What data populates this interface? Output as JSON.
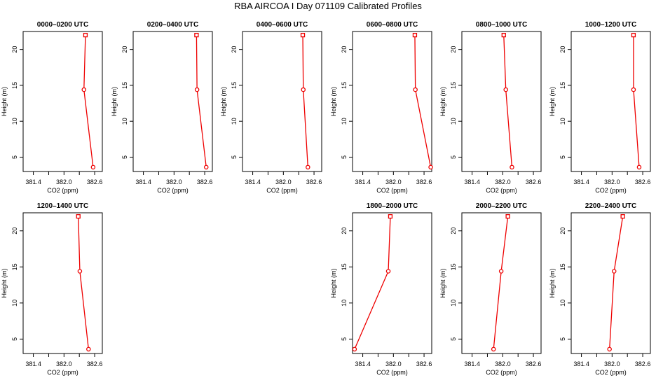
{
  "title": "RBA AIRCOA I  Day 071109  Calibrated Profiles",
  "colors": {
    "line": "#ee0000",
    "frame": "#000000"
  },
  "chart_data": [
    {
      "type": "line",
      "title": "0000–0200 UTC",
      "xlabel": "CO2 (ppm)",
      "ylabel": "Height (m)",
      "xlim": [
        381.2,
        382.75
      ],
      "ylim": [
        3,
        22.5
      ],
      "x_ticks": [
        "381.4",
        "382.0",
        "382.6"
      ],
      "x_tick_values": [
        381.4,
        381.7,
        382.0,
        382.3,
        382.6
      ],
      "y_ticks": [
        5,
        10,
        15,
        20
      ],
      "x": [
        382.42,
        382.39,
        382.57
      ],
      "y": [
        22,
        14.4,
        3.6
      ]
    },
    {
      "type": "line",
      "title": "0200–0400 UTC",
      "xlabel": "CO2 (ppm)",
      "ylabel": "Height (m)",
      "xlim": [
        381.2,
        382.75
      ],
      "ylim": [
        3,
        22.5
      ],
      "x_ticks": [
        "381.4",
        "382.0",
        "382.6"
      ],
      "x_tick_values": [
        381.4,
        381.7,
        382.0,
        382.3,
        382.6
      ],
      "y_ticks": [
        5,
        10,
        15,
        20
      ],
      "x": [
        382.44,
        382.45,
        382.63
      ],
      "y": [
        22,
        14.4,
        3.6
      ]
    },
    {
      "type": "line",
      "title": "0400–0600 UTC",
      "xlabel": "CO2 (ppm)",
      "ylabel": "Height (m)",
      "xlim": [
        381.2,
        382.75
      ],
      "ylim": [
        3,
        22.5
      ],
      "x_ticks": [
        "381.4",
        "382.0",
        "382.6"
      ],
      "x_tick_values": [
        381.4,
        381.7,
        382.0,
        382.3,
        382.6
      ],
      "y_ticks": [
        5,
        10,
        15,
        20
      ],
      "x": [
        382.38,
        382.39,
        382.48
      ],
      "y": [
        22,
        14.4,
        3.6
      ]
    },
    {
      "type": "line",
      "title": "0600–0800 UTC",
      "xlabel": "CO2 (ppm)",
      "ylabel": "Height (m)",
      "xlim": [
        381.2,
        382.75
      ],
      "ylim": [
        3,
        22.5
      ],
      "x_ticks": [
        "381.4",
        "382.0",
        "382.6"
      ],
      "x_tick_values": [
        381.4,
        381.7,
        382.0,
        382.3,
        382.6
      ],
      "y_ticks": [
        5,
        10,
        15,
        20
      ],
      "x": [
        382.42,
        382.43,
        382.73
      ],
      "y": [
        22,
        14.4,
        3.6
      ]
    },
    {
      "type": "line",
      "title": "0800–1000 UTC",
      "xlabel": "CO2 (ppm)",
      "ylabel": "Height (m)",
      "xlim": [
        381.2,
        382.75
      ],
      "ylim": [
        3,
        22.5
      ],
      "x_ticks": [
        "381.4",
        "382.0",
        "382.6"
      ],
      "x_tick_values": [
        381.4,
        381.7,
        382.0,
        382.3,
        382.6
      ],
      "y_ticks": [
        5,
        10,
        15,
        20
      ],
      "x": [
        382.02,
        382.06,
        382.18
      ],
      "y": [
        22,
        14.4,
        3.6
      ]
    },
    {
      "type": "line",
      "title": "1000–1200 UTC",
      "xlabel": "CO2 (ppm)",
      "ylabel": "Height (m)",
      "xlim": [
        381.2,
        382.75
      ],
      "ylim": [
        3,
        22.5
      ],
      "x_ticks": [
        "381.4",
        "382.0",
        "382.6"
      ],
      "x_tick_values": [
        381.4,
        381.7,
        382.0,
        382.3,
        382.6
      ],
      "y_ticks": [
        5,
        10,
        15,
        20
      ],
      "x": [
        382.42,
        382.42,
        382.53
      ],
      "y": [
        22,
        14.4,
        3.6
      ]
    },
    {
      "type": "line",
      "title": "1200–1400 UTC",
      "xlabel": "CO2 (ppm)",
      "ylabel": "Height (m)",
      "xlim": [
        381.2,
        382.75
      ],
      "ylim": [
        3,
        22.5
      ],
      "x_ticks": [
        "381.4",
        "382.0",
        "382.6"
      ],
      "x_tick_values": [
        381.4,
        381.7,
        382.0,
        382.3,
        382.6
      ],
      "y_ticks": [
        5,
        10,
        15,
        20
      ],
      "x": [
        382.28,
        382.31,
        382.48
      ],
      "y": [
        22,
        14.4,
        3.6
      ]
    },
    {
      "type": "line",
      "title": "1800–2000 UTC",
      "xlabel": "CO2 (ppm)",
      "ylabel": "Height (m)",
      "xlim": [
        381.2,
        382.75
      ],
      "ylim": [
        3,
        22.5
      ],
      "x_ticks": [
        "381.4",
        "382.0",
        "382.6"
      ],
      "x_tick_values": [
        381.4,
        381.7,
        382.0,
        382.3,
        382.6
      ],
      "y_ticks": [
        5,
        10,
        15,
        20
      ],
      "x": [
        381.94,
        381.9,
        381.24
      ],
      "y": [
        22,
        14.4,
        3.6
      ]
    },
    {
      "type": "line",
      "title": "2000–2200 UTC",
      "xlabel": "CO2 (ppm)",
      "ylabel": "Height (m)",
      "xlim": [
        381.2,
        382.75
      ],
      "ylim": [
        3,
        22.5
      ],
      "x_ticks": [
        "381.4",
        "382.0",
        "382.6"
      ],
      "x_tick_values": [
        381.4,
        381.7,
        382.0,
        382.3,
        382.6
      ],
      "y_ticks": [
        5,
        10,
        15,
        20
      ],
      "x": [
        382.1,
        381.97,
        381.82
      ],
      "y": [
        22,
        14.4,
        3.6
      ]
    },
    {
      "type": "line",
      "title": "2200–2400 UTC",
      "xlabel": "CO2 (ppm)",
      "ylabel": "Height (m)",
      "xlim": [
        381.2,
        382.75
      ],
      "ylim": [
        3,
        22.5
      ],
      "x_ticks": [
        "381.4",
        "382.0",
        "382.6"
      ],
      "x_tick_values": [
        381.4,
        381.7,
        382.0,
        382.3,
        382.6
      ],
      "y_ticks": [
        5,
        10,
        15,
        20
      ],
      "x": [
        382.21,
        382.04,
        381.95
      ],
      "y": [
        22,
        14.4,
        3.6
      ]
    }
  ]
}
